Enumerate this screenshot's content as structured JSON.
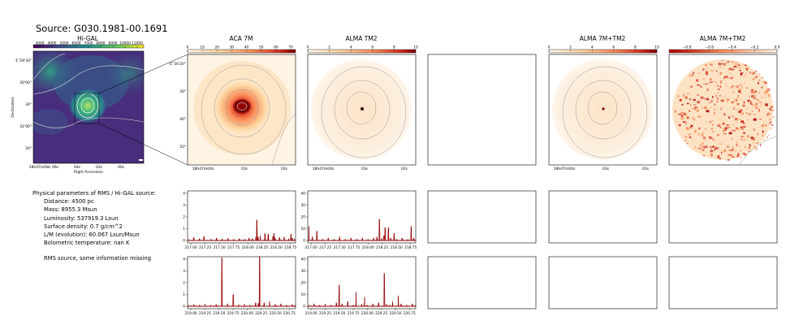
{
  "title": "Source: G030.1981-00.1691",
  "params": {
    "header": "Physical parameters of RMS / Hi-GAL source:",
    "lines": [
      "Distance: 4500 pc",
      "Mass: 8955.3 Msun",
      "Luminosity: 537919.3 Lsun",
      "Surface density: 0.7 g/cm^2",
      "L/M (evolution): 60.067 Lsun/Msun",
      "Bolometric temperature: nan K"
    ],
    "note": "RMS source, some information missing"
  },
  "panels": {
    "higal": {
      "title": "Hi-GAL",
      "cbar_ticks": [
        "3000",
        "4000",
        "5000",
        "6000",
        "7000",
        "8000",
        "9000",
        "10000",
        "11000"
      ],
      "yticks": [
        "-1°29'30\"",
        "30'00\"",
        "30\"",
        "31'00\"",
        "30\""
      ],
      "xticks": [
        "18h47m08s",
        "06s",
        "04s",
        "02s",
        "00s"
      ],
      "xlabel": "Right Ascension",
      "ylabel": "Declination"
    },
    "aca": {
      "title": "ACA 7M",
      "cbar_ticks": [
        "0",
        "10",
        "20",
        "30",
        "40",
        "50",
        "60",
        "70"
      ],
      "yticks": [
        "-1°30'20\"",
        "30\"",
        "40\"",
        "50\""
      ],
      "xticks": [
        "18h47m04s",
        "03s",
        "02s"
      ]
    },
    "tm2": {
      "title": "ALMA TM2",
      "cbar_ticks": [
        "0",
        "2",
        "4",
        "6",
        "8",
        "10"
      ],
      "xticks": [
        "18h47m04s",
        "03s",
        "02s"
      ]
    },
    "comb": {
      "title": "ALMA 7M+TM2",
      "cbar_ticks": [
        "0",
        "2",
        "4",
        "6",
        "8",
        "10"
      ],
      "xticks": [
        "18h47m04s",
        "03s",
        "02s"
      ]
    },
    "diff": {
      "title": "ALMA 7M+TM2",
      "cbar_ticks": [
        "−0.8",
        "−0.6",
        "−0.4",
        "−0.2",
        "0.0"
      ]
    }
  },
  "chart_data": [
    {
      "type": "line",
      "panel": "ACA 7M spectrum, lower sideband",
      "x_ticks": [
        "217.00",
        "217.25",
        "217.50",
        "217.75",
        "218.00",
        "218.25",
        "218.50",
        "218.75"
      ],
      "y_ticks": [
        "0",
        "1",
        "2",
        "3",
        "4"
      ],
      "xlim": [
        216.94,
        218.84
      ],
      "ylim": [
        -0.2,
        4.2
      ],
      "series": [
        {
          "color": "#8b0000",
          "x": [
            216.96,
            217.05,
            217.15,
            217.23,
            217.35,
            217.45,
            217.55,
            217.65,
            217.75,
            217.85,
            217.95,
            218.02,
            218.08,
            218.14,
            218.16,
            218.18,
            218.22,
            218.3,
            218.36,
            218.44,
            218.46,
            218.48,
            218.56,
            218.64,
            218.72,
            218.76,
            218.78,
            218.82
          ],
          "y": [
            0.1,
            0.25,
            0.15,
            0.35,
            0.1,
            0.2,
            0.12,
            0.18,
            0.1,
            0.15,
            0.1,
            0.2,
            0.15,
            0.3,
            1.75,
            0.3,
            0.4,
            0.6,
            0.55,
            0.35,
            0.6,
            0.2,
            0.25,
            0.3,
            0.15,
            0.55,
            0.2,
            0.15
          ]
        }
      ]
    },
    {
      "type": "line",
      "panel": "ALMA TM2 spectrum, lower sideband",
      "x_ticks": [
        "217.00",
        "217.25",
        "217.50",
        "217.75",
        "218.00",
        "218.25",
        "218.50",
        "218.75"
      ],
      "y_ticks": [
        "0",
        "10",
        "20",
        "30",
        "40"
      ],
      "xlim": [
        216.94,
        218.84
      ],
      "ylim": [
        -2,
        42
      ],
      "series": [
        {
          "color": "#8b0000",
          "x": [
            216.96,
            217.02,
            217.1,
            217.2,
            217.3,
            217.4,
            217.5,
            217.6,
            217.7,
            217.8,
            217.9,
            218.0,
            218.1,
            218.16,
            218.2,
            218.24,
            218.28,
            218.3,
            218.36,
            218.4,
            218.46,
            218.5,
            218.6,
            218.7,
            218.76,
            218.8,
            218.82
          ],
          "y": [
            12,
            3,
            8,
            1,
            2,
            1,
            3,
            1,
            2,
            1,
            2,
            1,
            2,
            3,
            18,
            2,
            4,
            11,
            11,
            2,
            6,
            1,
            2,
            1,
            12,
            2,
            1
          ]
        }
      ]
    },
    {
      "type": "line",
      "panel": "ACA 7M spectrum, upper sideband",
      "x_ticks": [
        "219.00",
        "219.25",
        "219.50",
        "219.75",
        "220.00",
        "220.25",
        "220.50",
        "220.75"
      ],
      "y_ticks": [
        "0",
        "1",
        "2",
        "3",
        "4"
      ],
      "xlim": [
        218.94,
        220.86
      ],
      "ylim": [
        -0.2,
        4.2
      ],
      "series": [
        {
          "color": "#8b0000",
          "x": [
            218.96,
            219.05,
            219.15,
            219.25,
            219.35,
            219.45,
            219.55,
            219.65,
            219.75,
            219.85,
            219.95,
            220.05,
            220.15,
            220.2,
            220.22,
            220.3,
            220.4,
            220.5,
            220.6,
            220.7,
            220.8,
            220.85
          ],
          "y": [
            0.1,
            0.15,
            0.1,
            0.2,
            0.1,
            0.15,
            4.1,
            0.2,
            1.0,
            0.15,
            0.2,
            0.1,
            0.3,
            0.25,
            4.2,
            0.3,
            0.4,
            0.2,
            0.2,
            0.1,
            0.15,
            0.1
          ]
        }
      ]
    },
    {
      "type": "line",
      "panel": "ALMA TM2 spectrum, upper sideband",
      "x_ticks": [
        "219.00",
        "219.25",
        "219.50",
        "219.75",
        "220.00",
        "220.25",
        "220.50",
        "220.75"
      ],
      "y_ticks": [
        "0",
        "10",
        "20",
        "30",
        "40"
      ],
      "xlim": [
        218.94,
        220.86
      ],
      "ylim": [
        -2,
        42
      ],
      "series": [
        {
          "color": "#8b0000",
          "x": [
            218.96,
            219.05,
            219.15,
            219.25,
            219.35,
            219.45,
            219.5,
            219.55,
            219.65,
            219.75,
            219.8,
            219.9,
            219.95,
            220.0,
            220.1,
            220.2,
            220.3,
            220.34,
            220.4,
            220.45,
            220.55,
            220.6,
            220.7,
            220.8,
            220.85
          ],
          "y": [
            1,
            2,
            1,
            2,
            1,
            3,
            18,
            2,
            4,
            1,
            12,
            2,
            8,
            1,
            2,
            3,
            28,
            2,
            1,
            4,
            9,
            2,
            1,
            2,
            1
          ]
        }
      ]
    }
  ]
}
